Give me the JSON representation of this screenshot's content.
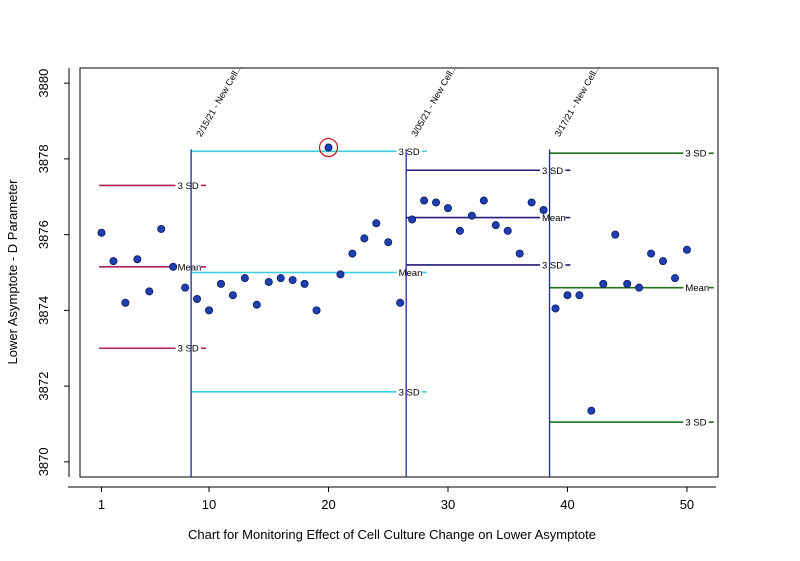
{
  "chart_data": {
    "type": "scatter",
    "title": "",
    "xlabel": "Chart for Monitoring Effect of Cell Culture Change on Lower Asymptote",
    "ylabel": "Lower Asymptote - D Parameter",
    "xlim": [
      -0.8,
      52.6
    ],
    "ylim": [
      3869.6,
      3880.4
    ],
    "x_ticks": [
      1,
      10,
      20,
      30,
      40,
      50
    ],
    "y_ticks": [
      3870,
      3872,
      3874,
      3876,
      3878,
      3880
    ],
    "grid": false,
    "legend": "none",
    "marker_color": "#1f3fb0",
    "highlight_color": "#c02020",
    "changepoint_color": "#1a2f8c",
    "changepoints": [
      {
        "x": 8.5,
        "label": "2/15/21 - New Cell..."
      },
      {
        "x": 26.5,
        "label": "3/05/21 - New Cell..."
      },
      {
        "x": 38.5,
        "label": "3/17/21 - New Cell..."
      }
    ],
    "phases": [
      {
        "color": "#b0205a",
        "x_start": 0.8,
        "x_end": 7.2,
        "ucl": 3877.3,
        "mean": 3875.15,
        "lcl": 3873.0
      },
      {
        "color": "#3ccfe0",
        "x_start": 8.5,
        "x_end": 25.7,
        "ucl": 3878.2,
        "mean": 3875.0,
        "lcl": 3871.85
      },
      {
        "color": "#241a7a",
        "x_start": 26.5,
        "x_end": 37.7,
        "ucl": 3877.7,
        "mean": 3876.45,
        "lcl": 3875.2
      },
      {
        "color": "#207020",
        "x_start": 38.5,
        "x_end": 49.7,
        "ucl": 3878.15,
        "mean": 3874.6,
        "lcl": 3871.05
      }
    ],
    "ref_labels": {
      "sd": "3 SD",
      "mean": "Mean"
    },
    "points": [
      {
        "x": 1,
        "y": 3876.05
      },
      {
        "x": 2,
        "y": 3875.3
      },
      {
        "x": 3,
        "y": 3874.2
      },
      {
        "x": 4,
        "y": 3875.35
      },
      {
        "x": 5,
        "y": 3874.5
      },
      {
        "x": 6,
        "y": 3876.15
      },
      {
        "x": 7,
        "y": 3875.15
      },
      {
        "x": 8,
        "y": 3874.6
      },
      {
        "x": 9,
        "y": 3874.3
      },
      {
        "x": 10,
        "y": 3874.0
      },
      {
        "x": 11,
        "y": 3874.7
      },
      {
        "x": 12,
        "y": 3874.4
      },
      {
        "x": 13,
        "y": 3874.85
      },
      {
        "x": 14,
        "y": 3874.15
      },
      {
        "x": 15,
        "y": 3874.75
      },
      {
        "x": 16,
        "y": 3874.85
      },
      {
        "x": 17,
        "y": 3874.8
      },
      {
        "x": 18,
        "y": 3874.7
      },
      {
        "x": 19,
        "y": 3874.0
      },
      {
        "x": 20,
        "y": 3878.3,
        "highlight": true
      },
      {
        "x": 21,
        "y": 3874.95
      },
      {
        "x": 22,
        "y": 3875.5
      },
      {
        "x": 23,
        "y": 3875.9
      },
      {
        "x": 24,
        "y": 3876.3
      },
      {
        "x": 25,
        "y": 3875.8
      },
      {
        "x": 26,
        "y": 3874.2
      },
      {
        "x": 27,
        "y": 3876.4
      },
      {
        "x": 28,
        "y": 3876.9
      },
      {
        "x": 29,
        "y": 3876.85
      },
      {
        "x": 30,
        "y": 3876.7
      },
      {
        "x": 31,
        "y": 3876.1
      },
      {
        "x": 32,
        "y": 3876.5
      },
      {
        "x": 33,
        "y": 3876.9
      },
      {
        "x": 34,
        "y": 3876.25
      },
      {
        "x": 35,
        "y": 3876.1
      },
      {
        "x": 36,
        "y": 3875.5
      },
      {
        "x": 37,
        "y": 3876.85
      },
      {
        "x": 38,
        "y": 3876.65
      },
      {
        "x": 39,
        "y": 3874.05
      },
      {
        "x": 40,
        "y": 3874.4
      },
      {
        "x": 41,
        "y": 3874.4
      },
      {
        "x": 42,
        "y": 3871.35
      },
      {
        "x": 43,
        "y": 3874.7
      },
      {
        "x": 44,
        "y": 3876.0
      },
      {
        "x": 45,
        "y": 3874.7
      },
      {
        "x": 46,
        "y": 3874.6
      },
      {
        "x": 47,
        "y": 3875.5
      },
      {
        "x": 48,
        "y": 3875.3
      },
      {
        "x": 49,
        "y": 3874.85
      },
      {
        "x": 50,
        "y": 3875.6
      }
    ]
  }
}
